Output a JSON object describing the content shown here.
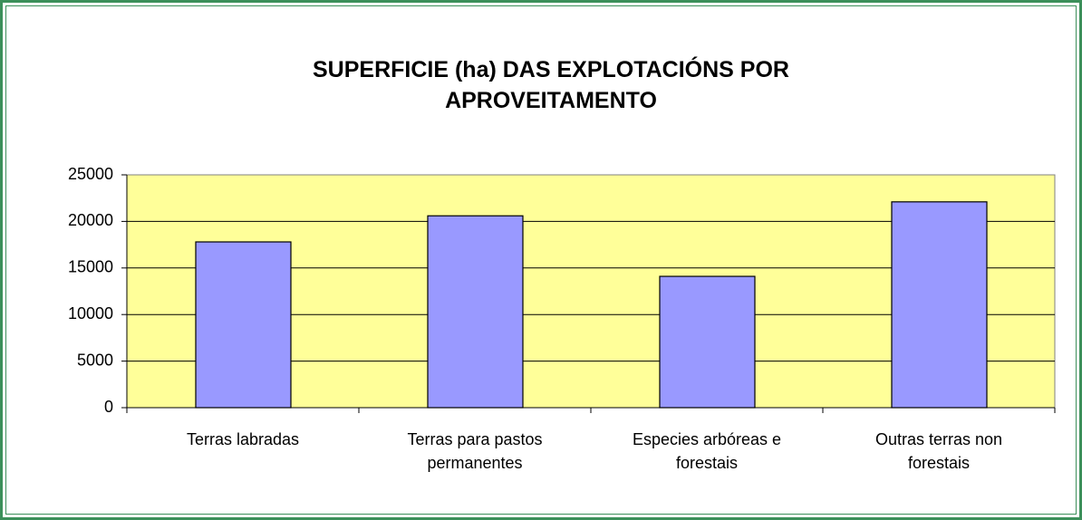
{
  "chart_data": {
    "type": "bar",
    "title": "SUPERFICIE (ha) DAS EXPLOTACIÓNS POR APROVEITAMENTO",
    "categories": [
      "Terras labradas",
      "Terras para pastos permanentes",
      "Especies arbóreas e forestais",
      "Outras terras non forestais"
    ],
    "values": [
      17800,
      20600,
      14100,
      22100
    ],
    "color": "#9999ff",
    "ylim": [
      0,
      25000
    ],
    "yticks": [
      0,
      5000,
      10000,
      15000,
      20000,
      25000
    ],
    "grid": true
  }
}
